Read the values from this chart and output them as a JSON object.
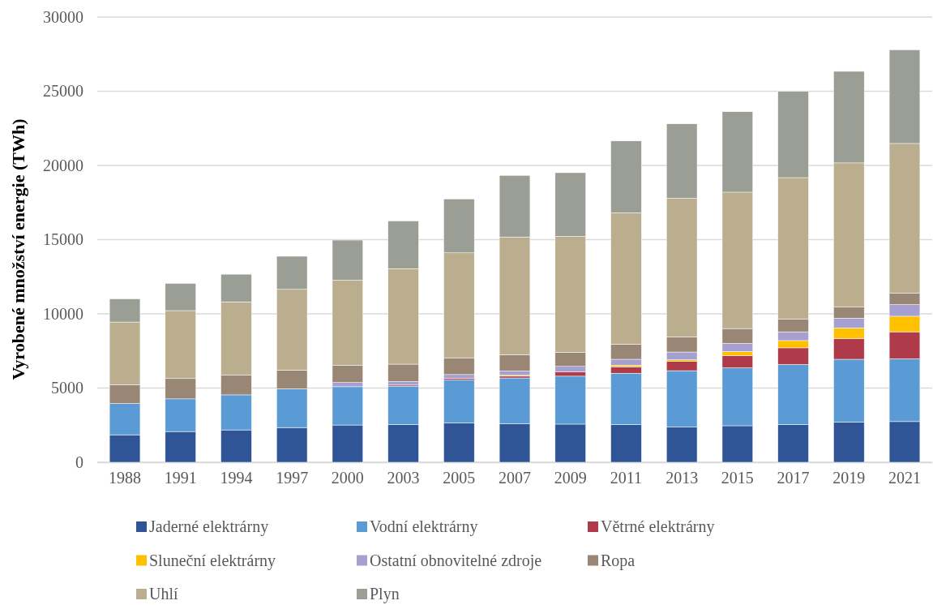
{
  "chart_data": {
    "type": "bar",
    "stacked": true,
    "ylabel": "Vyrobené množství energie (TWh)",
    "categories": [
      "1988",
      "1991",
      "1994",
      "1997",
      "2000",
      "2003",
      "2005",
      "2007",
      "2009",
      "2011",
      "2013",
      "2015",
      "2017",
      "2019",
      "2021"
    ],
    "series": [
      {
        "name": "Jaderné elektrárny",
        "color": "#2f5597",
        "values": [
          1850,
          2070,
          2180,
          2340,
          2510,
          2540,
          2650,
          2610,
          2570,
          2540,
          2370,
          2460,
          2550,
          2700,
          2740
        ]
      },
      {
        "name": "Vodní elektrárny",
        "color": "#5b9bd5",
        "values": [
          2110,
          2200,
          2360,
          2610,
          2580,
          2590,
          2900,
          3070,
          3230,
          3460,
          3800,
          3900,
          4040,
          4240,
          4230
        ]
      },
      {
        "name": "Větrné elektrárny",
        "color": "#ae3a4a",
        "values": [
          0,
          0,
          0,
          0,
          0,
          70,
          110,
          120,
          300,
          430,
          620,
          820,
          1120,
          1400,
          1820
        ]
      },
      {
        "name": "Sluneční elektrárny",
        "color": "#ffc000",
        "values": [
          0,
          0,
          0,
          0,
          0,
          0,
          0,
          60,
          0,
          110,
          110,
          280,
          490,
          710,
          1050
        ]
      },
      {
        "name": "Ostatní obnovitelné zdroje",
        "color": "#a5a0d0",
        "values": [
          0,
          0,
          0,
          0,
          280,
          240,
          250,
          290,
          360,
          400,
          530,
          550,
          590,
          660,
          780
        ]
      },
      {
        "name": "Ropa",
        "color": "#998675",
        "values": [
          1260,
          1370,
          1320,
          1260,
          1150,
          1170,
          1130,
          1100,
          950,
          1020,
          1020,
          1000,
          870,
          740,
          760
        ]
      },
      {
        "name": "Uhlí",
        "color": "#baae8e",
        "values": [
          4230,
          4580,
          4950,
          5440,
          5750,
          6440,
          7070,
          7930,
          7810,
          8850,
          9340,
          9190,
          9520,
          9720,
          10100
        ]
      },
      {
        "name": "Plyn",
        "color": "#9a9e94",
        "values": [
          1560,
          1830,
          1860,
          2230,
          2700,
          3210,
          3630,
          4150,
          4290,
          4840,
          5010,
          5420,
          5810,
          6170,
          6310
        ]
      }
    ],
    "ylim": [
      0,
      30000
    ],
    "yticks": [
      0,
      5000,
      10000,
      15000,
      20000,
      25000,
      30000
    ],
    "grid": "y",
    "legend": "bottom"
  }
}
